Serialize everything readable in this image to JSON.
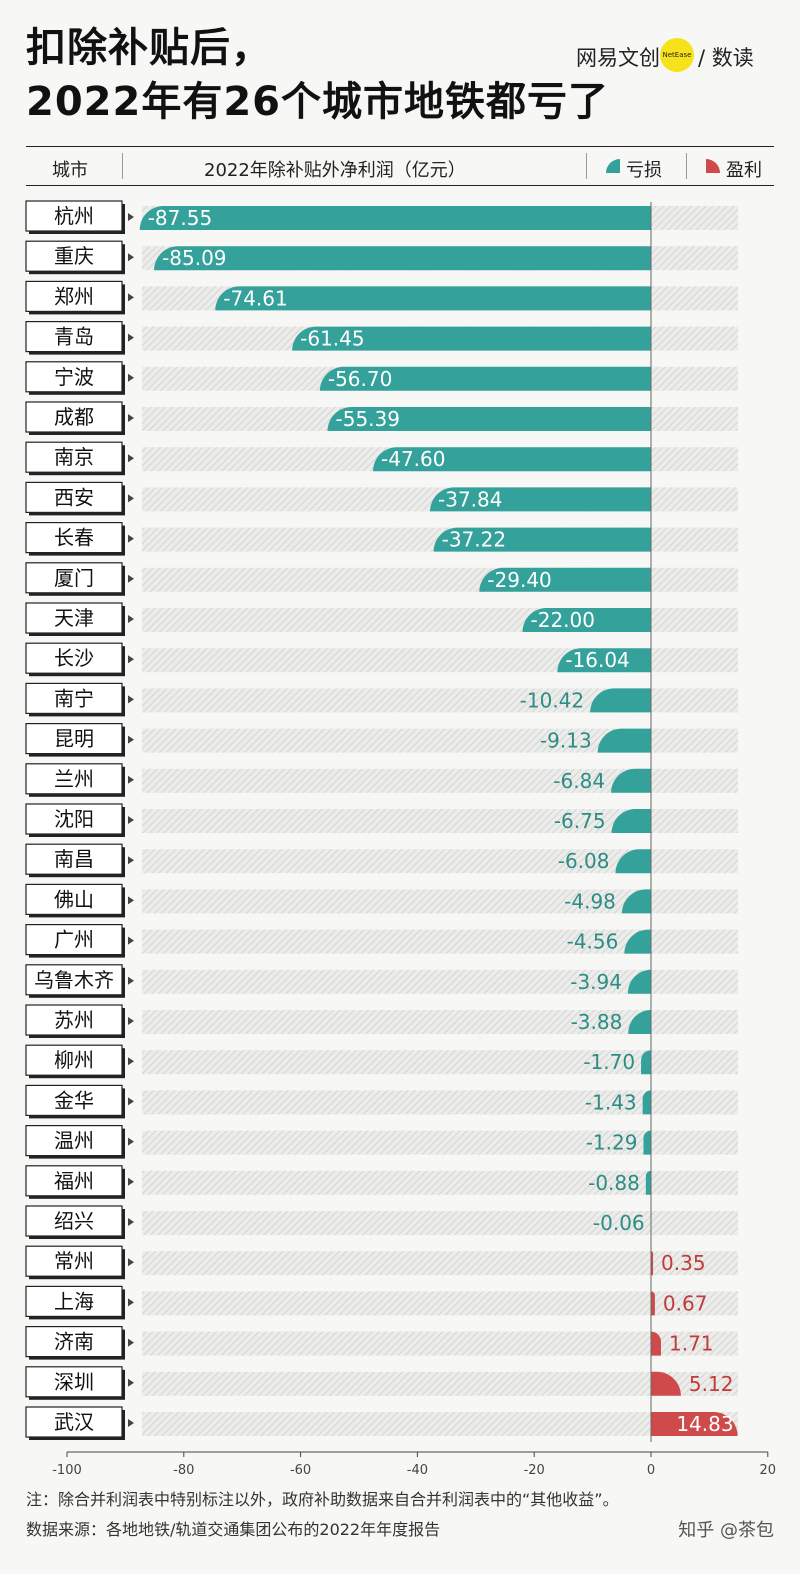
{
  "header": {
    "title_line1": "扣除补贴后，",
    "title_line2": "2022年有26个城市地铁都亏了",
    "brand_left": "网易文创",
    "brand_dot": "NetEase",
    "brand_right": "/ 数读"
  },
  "table_header": {
    "city": "城市",
    "metric": "2022年除补贴外净利润（亿元）",
    "legend_loss": "亏损",
    "legend_gain": "盈利"
  },
  "colors": {
    "loss": "#35a19b",
    "gain": "#cf4b4b",
    "loss_text": "#2c8d87",
    "gain_text": "#c23b3b"
  },
  "chart_data": {
    "type": "bar",
    "orientation": "horizontal",
    "categories": [
      "杭州",
      "重庆",
      "郑州",
      "青岛",
      "宁波",
      "成都",
      "南京",
      "西安",
      "长春",
      "厦门",
      "天津",
      "长沙",
      "南宁",
      "昆明",
      "兰州",
      "沈阳",
      "南昌",
      "佛山",
      "广州",
      "乌鲁木齐",
      "苏州",
      "柳州",
      "金华",
      "温州",
      "福州",
      "绍兴",
      "常州",
      "上海",
      "济南",
      "深圳",
      "武汉"
    ],
    "values": [
      -87.55,
      -85.09,
      -74.61,
      -61.45,
      -56.7,
      -55.39,
      -47.6,
      -37.84,
      -37.22,
      -29.4,
      -22.0,
      -16.04,
      -10.42,
      -9.13,
      -6.84,
      -6.75,
      -6.08,
      -4.98,
      -4.56,
      -3.94,
      -3.88,
      -1.7,
      -1.43,
      -1.29,
      -0.88,
      -0.06,
      0.35,
      0.67,
      1.71,
      5.12,
      14.83
    ],
    "value_labels": [
      "-87.55",
      "-85.09",
      "-74.61",
      "-61.45",
      "-56.70",
      "-55.39",
      "-47.60",
      "-37.84",
      "-37.22",
      "-29.40",
      "-22.00",
      "-16.04",
      "-10.42",
      "-9.13",
      "-6.84",
      "-6.75",
      "-6.08",
      "-4.98",
      "-4.56",
      "-3.94",
      "-3.88",
      "-1.70",
      "-1.43",
      "-1.29",
      "-0.88",
      "-0.06",
      "0.35",
      "0.67",
      "1.71",
      "5.12",
      "14.83"
    ],
    "xlim": [
      -100,
      20
    ],
    "xticks": [
      -100,
      -80,
      -60,
      -40,
      -20,
      0,
      20
    ],
    "xtick_labels": [
      "-100",
      "-80",
      "-60",
      "-40",
      "-20",
      "0",
      "20"
    ],
    "unit": "亿元"
  },
  "footer": {
    "note": "注：除合并利润表中特别标注以外，政府补助数据来自合并利润表中的“其他收益”。",
    "source": "数据来源：各地地铁/轨道交通集团公布的2022年年度报告",
    "watermark": "知乎 @茶包"
  }
}
